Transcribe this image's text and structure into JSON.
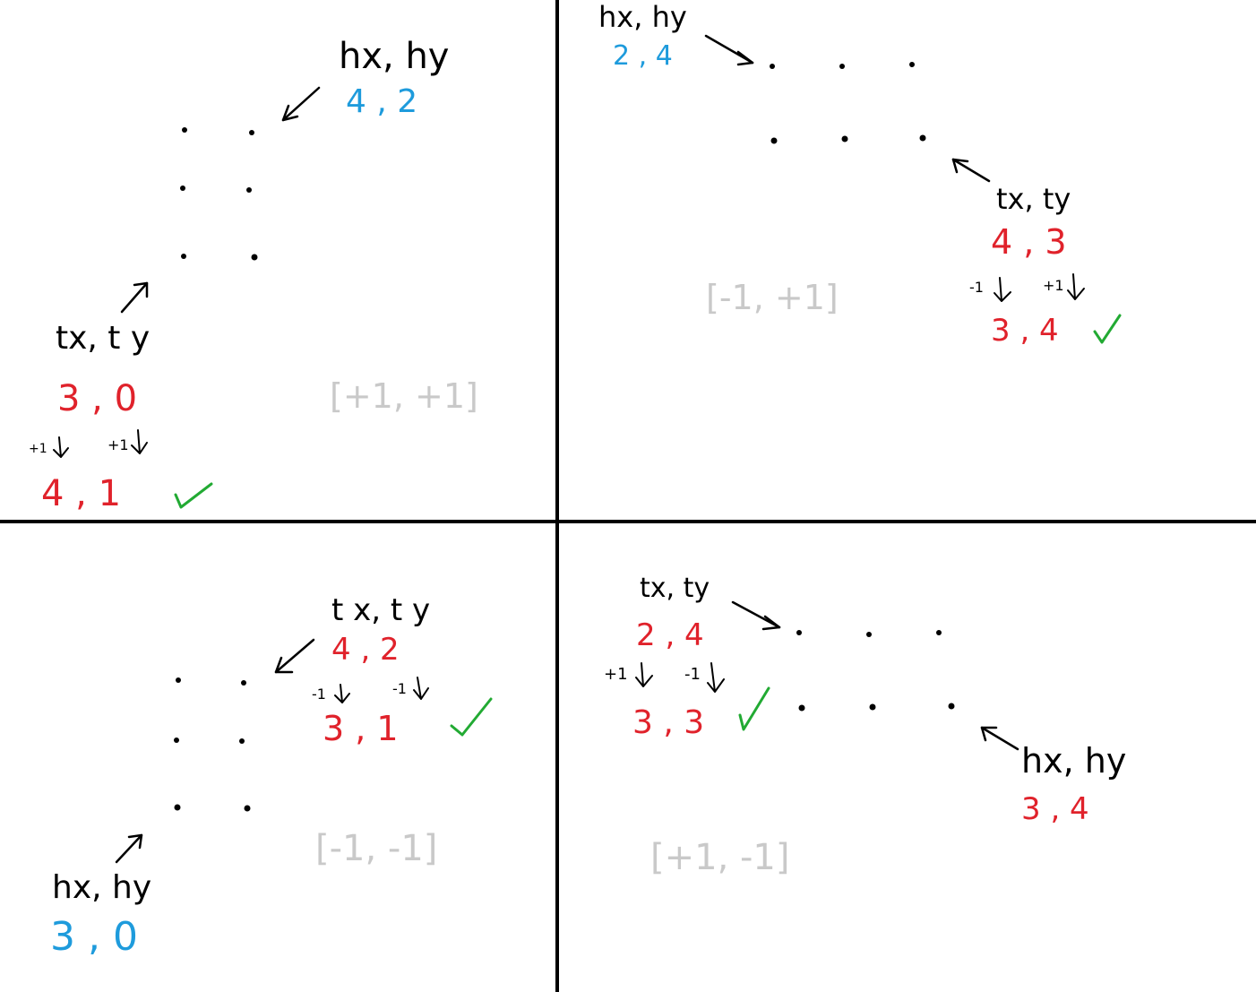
{
  "colors": {
    "head": "#1e9bdc",
    "tail": "#e0222b",
    "direction": "#c9c9c9",
    "check": "#22aa33",
    "ink": "#000000"
  },
  "quadrants": {
    "top_left": {
      "head_label": "hx, hy",
      "head_values": "4 , 2",
      "tail_label": "tx, t y",
      "tail_values": "3 , 0",
      "step_x": "+1",
      "step_y": "+1",
      "result": "4 , 1",
      "direction": "[+1, +1]",
      "check_icon": "check-icon"
    },
    "top_right": {
      "head_label": "hx, hy",
      "head_values": "2 , 4",
      "tail_label": "tx, ty",
      "tail_values": "4 , 3",
      "step_x": "-1",
      "step_y": "+1",
      "result": "3 , 4",
      "direction": "[-1, +1]",
      "check_icon": "check-icon"
    },
    "bottom_left": {
      "tail_label": "t x, t y",
      "tail_values": "4 , 2",
      "step_x": "-1",
      "step_y": "-1",
      "result": "3 , 1",
      "head_label": "hx, hy",
      "head_values": "3 , 0",
      "direction": "[-1, -1]",
      "check_icon": "check-icon"
    },
    "bottom_right": {
      "tail_label": "tx, ty",
      "tail_values": "2 , 4",
      "step_x": "+1",
      "step_y": "-1",
      "result": "3 , 3",
      "head_label": "hx, hy",
      "head_values": "3 , 4",
      "direction": "[+1, -1]",
      "check_icon": "check-icon"
    }
  }
}
